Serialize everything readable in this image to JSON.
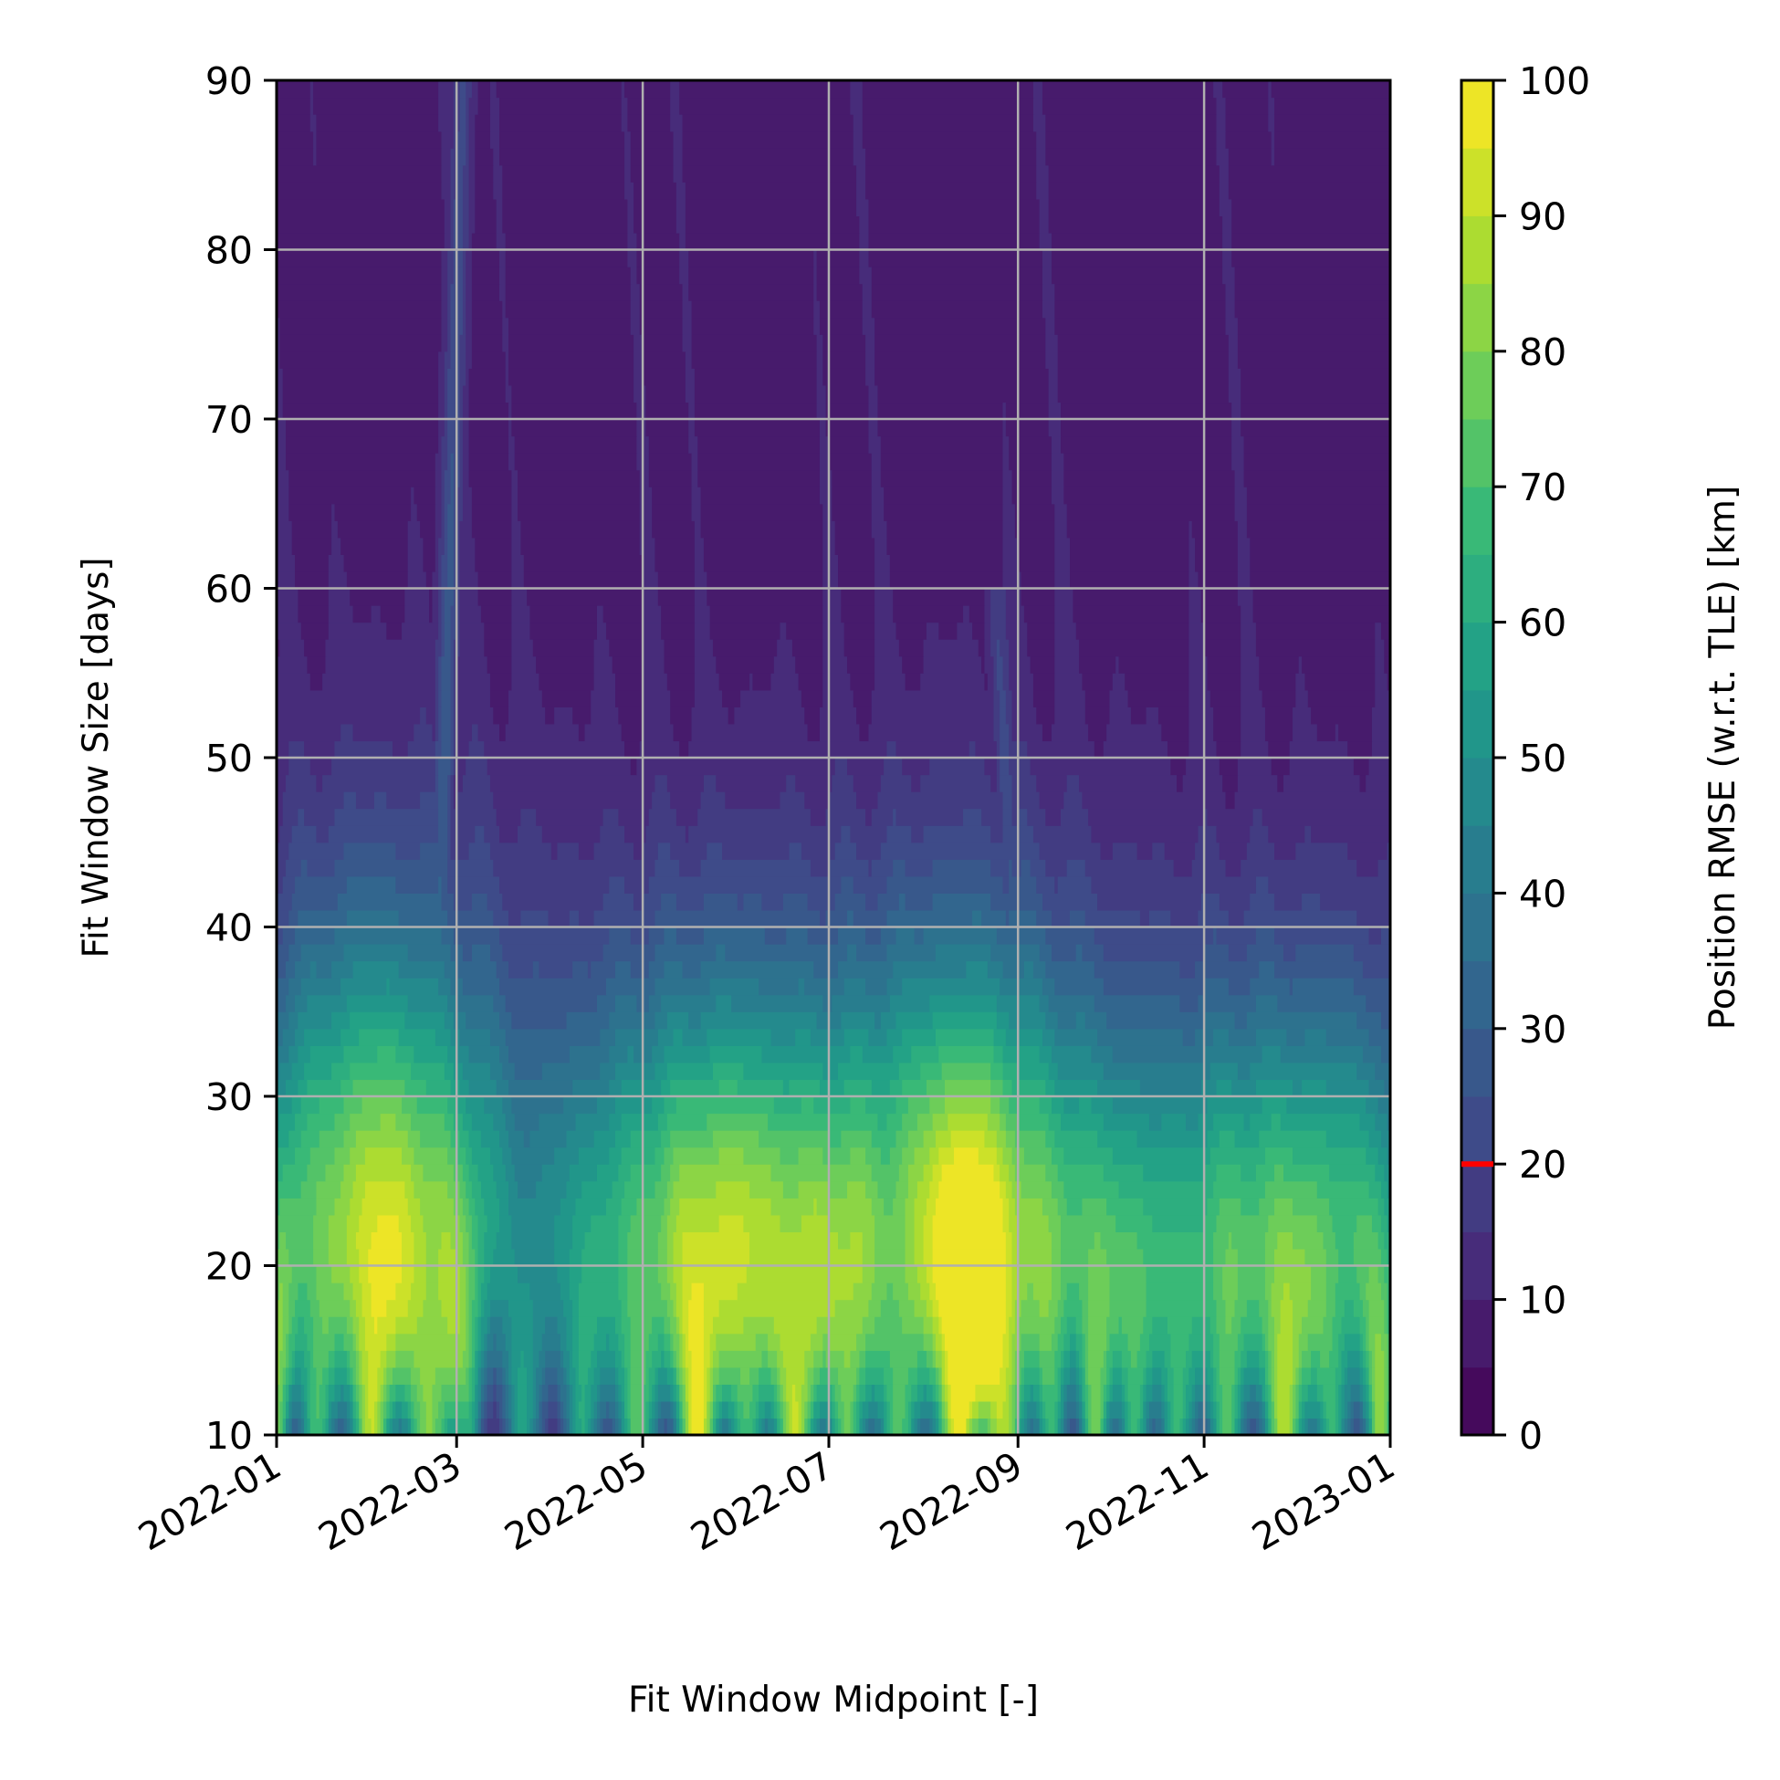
{
  "chart_data": {
    "type": "heatmap",
    "subtype": "filled-contour",
    "colormap": "viridis",
    "xlabel": "Fit Window Midpoint [-]",
    "ylabel": "Fit Window Size [days]",
    "colorbar_label": "Position RMSE (w.r.t. TLE) [km]",
    "xlim": [
      "2022-01-01",
      "2023-01-01"
    ],
    "ylim": [
      10,
      90
    ],
    "clim": [
      0,
      100
    ],
    "grid": true,
    "x_ticks": [
      "2022-01",
      "2022-03",
      "2022-05",
      "2022-07",
      "2022-09",
      "2022-11",
      "2023-01"
    ],
    "y_ticks": [
      10,
      20,
      30,
      40,
      50,
      60,
      70,
      80,
      90
    ],
    "colorbar_ticks": [
      0,
      10,
      20,
      30,
      40,
      50,
      60,
      70,
      80,
      90,
      100
    ],
    "colorbar_marker": {
      "value": 20,
      "color": "#ff0000"
    },
    "background_rmse": 8,
    "peaks": [
      {
        "date": "2022-01-01",
        "peak_rmse": 75,
        "width_days": 4,
        "fade_size": 30
      },
      {
        "date": "2022-01-14",
        "peak_rmse": 70,
        "width_days": 6,
        "fade_size": 34
      },
      {
        "date": "2022-02-01",
        "peak_rmse": 90,
        "width_days": 7,
        "fade_size": 36
      },
      {
        "date": "2022-02-20",
        "peak_rmse": 82,
        "width_days": 8,
        "fade_size": 38
      },
      {
        "date": "2022-03-05",
        "peak_rmse": 55,
        "width_days": 5,
        "fade_size": 26
      },
      {
        "date": "2022-03-23",
        "peak_rmse": 58,
        "width_days": 6,
        "fade_size": 28
      },
      {
        "date": "2022-04-11",
        "peak_rmse": 60,
        "width_days": 6,
        "fade_size": 30
      },
      {
        "date": "2022-04-29",
        "peak_rmse": 72,
        "width_days": 7,
        "fade_size": 32
      },
      {
        "date": "2022-05-19",
        "peak_rmse": 98,
        "width_days": 7,
        "fade_size": 33
      },
      {
        "date": "2022-06-04",
        "peak_rmse": 68,
        "width_days": 6,
        "fade_size": 30
      },
      {
        "date": "2022-06-20",
        "peak_rmse": 92,
        "width_days": 7,
        "fade_size": 32
      },
      {
        "date": "2022-07-07",
        "peak_rmse": 78,
        "width_days": 6,
        "fade_size": 30
      },
      {
        "date": "2022-07-24",
        "peak_rmse": 74,
        "width_days": 7,
        "fade_size": 32
      },
      {
        "date": "2022-08-12",
        "peak_rmse": 96,
        "width_days": 7,
        "fade_size": 34
      },
      {
        "date": "2022-08-27",
        "peak_rmse": 86,
        "width_days": 8,
        "fade_size": 36
      },
      {
        "date": "2022-09-12",
        "peak_rmse": 62,
        "width_days": 5,
        "fade_size": 28
      },
      {
        "date": "2022-09-26",
        "peak_rmse": 80,
        "width_days": 5,
        "fade_size": 28
      },
      {
        "date": "2022-10-09",
        "peak_rmse": 68,
        "width_days": 5,
        "fade_size": 28
      },
      {
        "date": "2022-10-23",
        "peak_rmse": 66,
        "width_days": 6,
        "fade_size": 30
      },
      {
        "date": "2022-11-08",
        "peak_rmse": 72,
        "width_days": 6,
        "fade_size": 30
      },
      {
        "date": "2022-11-27",
        "peak_rmse": 88,
        "width_days": 7,
        "fade_size": 32
      },
      {
        "date": "2022-12-13",
        "peak_rmse": 65,
        "width_days": 6,
        "fade_size": 30
      },
      {
        "date": "2022-12-29",
        "peak_rmse": 85,
        "width_days": 5,
        "fade_size": 30
      }
    ],
    "ridges": [
      {
        "date_bottom": "2022-02-22",
        "date_top": "2022-03-03",
        "size_bottom": 30,
        "size_top": 90,
        "rmse": 25
      },
      {
        "date_bottom": "2022-09-02",
        "date_top": "2022-08-25",
        "size_bottom": 30,
        "size_top": 60,
        "rmse": 22
      }
    ]
  }
}
